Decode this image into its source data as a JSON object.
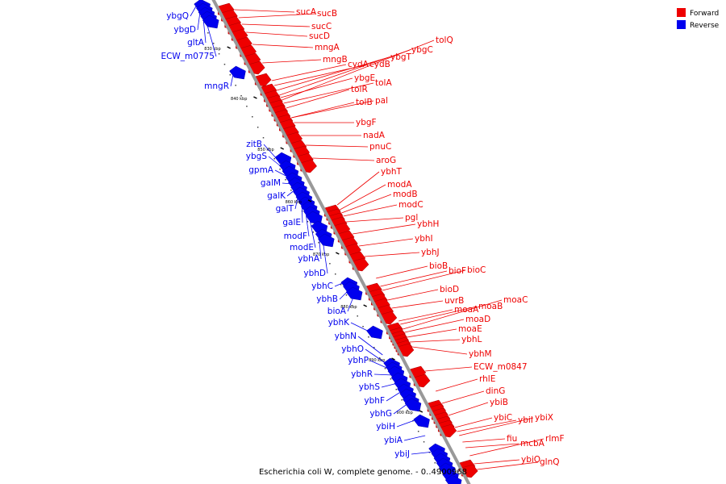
{
  "caption": "Escherichia coli W, complete genome. - 0..4900968",
  "legend": [
    {
      "label": "Forward",
      "color": "#ee0000"
    },
    {
      "label": "Reverse",
      "color": "#0000ee"
    }
  ],
  "colors": {
    "forward": "#ee0000",
    "reverse": "#0000ee",
    "backbone": "#999999"
  },
  "ticks": [
    "830 kbp",
    "840 kbp",
    "850 kbp",
    "860 kbp",
    "870 kbp",
    "880 kbp",
    "890 kbp",
    "900 kbp"
  ],
  "forward_genes": [
    "sucA",
    "sucB",
    "sucC",
    "sucD",
    "mngA",
    "mngB",
    "cydA",
    "cydB",
    "ybgT",
    "ybgC",
    "tolQ",
    "ybgE",
    "tolA",
    "tolR",
    "tolB",
    "pal",
    "ybgF",
    "nadA",
    "pnuC",
    "aroG",
    "ybhT",
    "modA",
    "modB",
    "modC",
    "pgl",
    "ybhH",
    "ybhI",
    "ybhJ",
    "bioB",
    "bioF",
    "bioC",
    "bioD",
    "uvrB",
    "moaA",
    "moaB",
    "moaC",
    "moaD",
    "moaE",
    "ybhL",
    "ybhM",
    "ECW_m0847",
    "rhlE",
    "dinG",
    "ybiB",
    "ybiC",
    "ybiI",
    "ybiX",
    "fiu",
    "mcbA",
    "rlmF",
    "ybiO",
    "glnQ"
  ],
  "reverse_genes": [
    "ybgQ",
    "ybgD",
    "gltA",
    "ECW_m0775",
    "mngR",
    "zitB",
    "ybgS",
    "gpmA",
    "galM",
    "galK",
    "galT",
    "galE",
    "modF",
    "modE",
    "ybhA",
    "ybhD",
    "ybhC",
    "ybhB",
    "bioA",
    "ybhK",
    "ybhN",
    "ybhO",
    "ybhP",
    "ybhR",
    "ybhS",
    "ybhF",
    "ybhG",
    "ybiH",
    "ybiA",
    "ybiJ"
  ]
}
